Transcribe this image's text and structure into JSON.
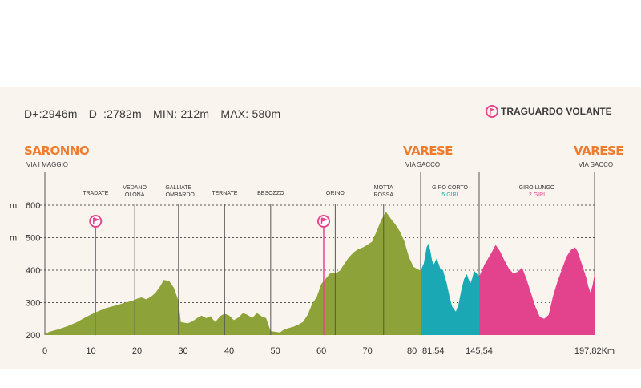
{
  "stats": {
    "dplus_label": "D+:",
    "dplus": "2946m",
    "dminus_label": "D–:",
    "dminus": "2782m",
    "min_label": "MIN:",
    "min": "212m",
    "max_label": "MAX:",
    "max": "580m"
  },
  "legend": {
    "label": "TRAGUARDO VOLANTE",
    "icon": "flag-icon",
    "color": "#e8458f"
  },
  "places": {
    "start": {
      "city": "SARONNO",
      "street": "VIA I MAGGIO"
    },
    "mid": {
      "city": "VARESE",
      "street": "VIA SACCO"
    },
    "end": {
      "city": "VARESE",
      "street": "VIA SACCO"
    }
  },
  "chart_data": {
    "type": "area",
    "xlabel": "",
    "ylabel": "m",
    "ylim": [
      200,
      600
    ],
    "y_ticks": [
      200,
      300,
      400,
      500,
      600
    ],
    "x_ticks": [
      {
        "value": 0,
        "label": "0"
      },
      {
        "value": 10,
        "label": "10"
      },
      {
        "value": 20,
        "label": "20"
      },
      {
        "value": 30,
        "label": "30"
      },
      {
        "value": 40,
        "label": "40"
      },
      {
        "value": 50,
        "label": "50"
      },
      {
        "value": 60,
        "label": "60"
      },
      {
        "value": 70,
        "label": "70"
      },
      {
        "value": 80,
        "label": "80"
      },
      {
        "value": 81.54,
        "label": "81,54"
      },
      {
        "value": 145.54,
        "label": "145,54"
      },
      {
        "value": 197.82,
        "label": "197,82Km"
      }
    ],
    "segments": [
      {
        "name": "",
        "color": "#8ea23a",
        "x_range": [
          0,
          81.54
        ],
        "points": [
          [
            0,
            203
          ],
          [
            1,
            210
          ],
          [
            3,
            218
          ],
          [
            5,
            228
          ],
          [
            7,
            240
          ],
          [
            9,
            256
          ],
          [
            11,
            270
          ],
          [
            13,
            282
          ],
          [
            15,
            290
          ],
          [
            17,
            298
          ],
          [
            19,
            306
          ],
          [
            20,
            312
          ],
          [
            21,
            316
          ],
          [
            22,
            310
          ],
          [
            23,
            318
          ],
          [
            24,
            330
          ],
          [
            25,
            350
          ],
          [
            25.8,
            370
          ],
          [
            27,
            366
          ],
          [
            28,
            346
          ],
          [
            29,
            305
          ],
          [
            29.5,
            240
          ],
          [
            31,
            236
          ],
          [
            32,
            242
          ],
          [
            33,
            252
          ],
          [
            34,
            260
          ],
          [
            35,
            252
          ],
          [
            36,
            258
          ],
          [
            36.5,
            248
          ],
          [
            37,
            240
          ],
          [
            38,
            258
          ],
          [
            39,
            266
          ],
          [
            40,
            260
          ],
          [
            41,
            246
          ],
          [
            42,
            254
          ],
          [
            43,
            268
          ],
          [
            44,
            262
          ],
          [
            45,
            252
          ],
          [
            46,
            268
          ],
          [
            47,
            258
          ],
          [
            48,
            252
          ],
          [
            49,
            212
          ],
          [
            51,
            208
          ],
          [
            52,
            218
          ],
          [
            53,
            222
          ],
          [
            54,
            226
          ],
          [
            55,
            232
          ],
          [
            56,
            240
          ],
          [
            57,
            262
          ],
          [
            58,
            296
          ],
          [
            59,
            318
          ],
          [
            60,
            358
          ],
          [
            61,
            375
          ],
          [
            62,
            392
          ],
          [
            63,
            390
          ],
          [
            64,
            398
          ],
          [
            65,
            420
          ],
          [
            66,
            440
          ],
          [
            67,
            455
          ],
          [
            68,
            465
          ],
          [
            69,
            470
          ],
          [
            70,
            478
          ],
          [
            71,
            488
          ],
          [
            72,
            520
          ],
          [
            73,
            555
          ],
          [
            74,
            580
          ],
          [
            75,
            560
          ],
          [
            76,
            542
          ],
          [
            77,
            520
          ],
          [
            78,
            490
          ],
          [
            79,
            440
          ],
          [
            80,
            410
          ],
          [
            81.54,
            398
          ]
        ]
      },
      {
        "name": "GIRO CORTO",
        "sublabel": "5 GIRI",
        "color": "#1aa9b4",
        "x_range": [
          81.54,
          145.54
        ],
        "points": [
          [
            81.54,
            398
          ],
          [
            85,
            420
          ],
          [
            88,
            470
          ],
          [
            90,
            482
          ],
          [
            92,
            462
          ],
          [
            94,
            430
          ],
          [
            96,
            418
          ],
          [
            99,
            436
          ],
          [
            101,
            422
          ],
          [
            103,
            405
          ],
          [
            106,
            400
          ],
          [
            110,
            360
          ],
          [
            113,
            320
          ],
          [
            116,
            288
          ],
          [
            120,
            272
          ],
          [
            123,
            295
          ],
          [
            126,
            338
          ],
          [
            129,
            372
          ],
          [
            132,
            388
          ],
          [
            134,
            372
          ],
          [
            136,
            360
          ],
          [
            138,
            375
          ],
          [
            140,
            398
          ],
          [
            142,
            392
          ],
          [
            145.54,
            380
          ]
        ]
      },
      {
        "name": "GIRO LUNGO",
        "sublabel": "2 GIRI",
        "color": "#e3428d",
        "x_range": [
          145.54,
          197.82
        ],
        "points": [
          [
            145.54,
            380
          ],
          [
            148,
            418
          ],
          [
            151,
            452
          ],
          [
            153,
            478
          ],
          [
            155,
            458
          ],
          [
            157,
            430
          ],
          [
            159,
            405
          ],
          [
            161,
            390
          ],
          [
            163,
            395
          ],
          [
            165,
            408
          ],
          [
            167,
            372
          ],
          [
            169,
            330
          ],
          [
            171,
            288
          ],
          [
            173,
            256
          ],
          [
            175,
            250
          ],
          [
            177,
            262
          ],
          [
            179,
            320
          ],
          [
            181,
            365
          ],
          [
            183,
            402
          ],
          [
            185,
            440
          ],
          [
            187,
            462
          ],
          [
            189,
            470
          ],
          [
            190,
            460
          ],
          [
            192,
            420
          ],
          [
            194,
            378
          ],
          [
            195,
            350
          ],
          [
            196,
            330
          ],
          [
            197,
            355
          ],
          [
            197.82,
            390
          ]
        ]
      }
    ],
    "waypoints": [
      {
        "km": 11,
        "label": "TRADATE",
        "line2": "",
        "flag": true
      },
      {
        "km": 19.5,
        "label": "VEDANO",
        "line2": "OLONA",
        "flag": false
      },
      {
        "km": 29,
        "label": "GALLIATE",
        "line2": "LOMBARDO",
        "flag": false
      },
      {
        "km": 39,
        "label": "TERNATE",
        "line2": "",
        "flag": false
      },
      {
        "km": 49,
        "label": "BESOZZO",
        "line2": "",
        "flag": false
      },
      {
        "km": 60.5,
        "label": "",
        "line2": "",
        "flag": true
      },
      {
        "km": 63,
        "label": "ORINO",
        "line2": "",
        "flag": false
      },
      {
        "km": 73.5,
        "label": "MOTTA",
        "line2": "ROSSA",
        "flag": false
      }
    ]
  }
}
